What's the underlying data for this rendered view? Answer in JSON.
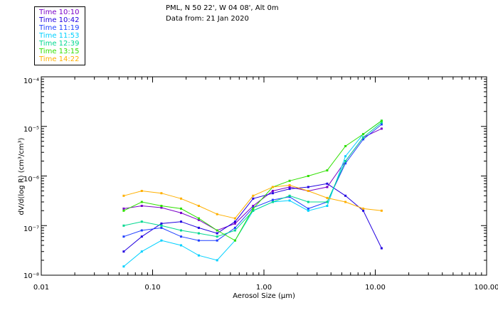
{
  "header": {
    "location": "PML, N 50 22', W 04 08', Alt 0m",
    "date": "Data from: 21 Jan 2020"
  },
  "chart_data": {
    "type": "line",
    "title": "PML, N 50 22', W 04 08', Alt 0m",
    "subtitle": "Data from: 21 Jan 2020",
    "xlabel": "Aerosol Size (μm)",
    "ylabel": "dV/d(log R) (cm³/cm³)",
    "xscale": "log",
    "yscale": "log",
    "xlim": [
      0.01,
      100
    ],
    "ylim": [
      1e-08,
      0.0001
    ],
    "x_tick_labels": [
      "0.01",
      "0.10",
      "1.00",
      "10.00",
      "100.00"
    ],
    "y_tick_labels": [
      "10⁻⁸",
      "10⁻⁷",
      "10⁻⁶",
      "10⁻⁵",
      "10⁻⁴"
    ],
    "x": [
      0.055,
      0.08,
      0.12,
      0.18,
      0.26,
      0.38,
      0.55,
      0.8,
      1.2,
      1.7,
      2.5,
      3.7,
      5.4,
      7.8,
      11.4
    ],
    "series": [
      {
        "name": "Time 10:10",
        "color": "#7a00c8",
        "values": [
          2.2e-07,
          2.5e-07,
          2.3e-07,
          1.8e-07,
          1.3e-07,
          8e-08,
          1.1e-07,
          2.5e-07,
          5e-07,
          6e-07,
          5e-07,
          6e-07,
          2e-06,
          6e-06,
          9e-06
        ]
      },
      {
        "name": "Time 10:42",
        "color": "#2200e0",
        "values": [
          3e-08,
          6e-08,
          1.1e-07,
          1.2e-07,
          9e-08,
          7e-08,
          1.2e-07,
          3.5e-07,
          4.5e-07,
          5.5e-07,
          6e-07,
          7e-07,
          4e-07,
          2e-07,
          3.5e-08
        ]
      },
      {
        "name": "Time 11:19",
        "color": "#2040ff",
        "values": [
          6e-08,
          8e-08,
          9e-08,
          6e-08,
          5e-08,
          5e-08,
          9e-08,
          2.3e-07,
          3.3e-07,
          3.8e-07,
          2.2e-07,
          3e-07,
          1.8e-06,
          5.5e-06,
          1.1e-05
        ]
      },
      {
        "name": "Time 11:53",
        "color": "#00d0ff",
        "values": [
          1.5e-08,
          3e-08,
          5e-08,
          4e-08,
          2.5e-08,
          2e-08,
          5e-08,
          2e-07,
          3e-07,
          3.2e-07,
          2e-07,
          2.5e-07,
          2.5e-06,
          7e-06,
          1.3e-05
        ]
      },
      {
        "name": "Time 12:39",
        "color": "#00d890",
        "values": [
          1e-07,
          1.2e-07,
          1e-07,
          8e-08,
          7e-08,
          6e-08,
          8e-08,
          2e-07,
          3e-07,
          4e-07,
          3e-07,
          3e-07,
          2e-06,
          6e-06,
          1.2e-05
        ]
      },
      {
        "name": "Time 13:15",
        "color": "#30e000",
        "values": [
          2e-07,
          3e-07,
          2.5e-07,
          2.2e-07,
          1.4e-07,
          8e-08,
          5e-08,
          2.2e-07,
          6e-07,
          8e-07,
          1e-06,
          1.3e-06,
          4e-06,
          7e-06,
          1.3e-05
        ]
      },
      {
        "name": "Time 14:22",
        "color": "#ffb000",
        "values": [
          4e-07,
          5e-07,
          4.5e-07,
          3.5e-07,
          2.5e-07,
          1.7e-07,
          1.4e-07,
          4e-07,
          6e-07,
          6.5e-07,
          5e-07,
          3.6e-07,
          3e-07,
          2.2e-07,
          2e-07
        ]
      }
    ]
  }
}
